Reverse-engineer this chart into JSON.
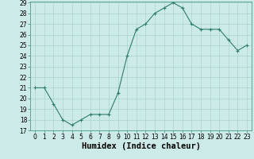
{
  "x": [
    0,
    1,
    2,
    3,
    4,
    5,
    6,
    7,
    8,
    9,
    10,
    11,
    12,
    13,
    14,
    15,
    16,
    17,
    18,
    19,
    20,
    21,
    22,
    23
  ],
  "y": [
    21,
    21,
    19.5,
    18,
    17.5,
    18,
    18.5,
    18.5,
    18.5,
    20.5,
    24,
    26.5,
    27,
    28,
    28.5,
    29,
    28.5,
    27,
    26.5,
    26.5,
    26.5,
    25.5,
    24.5,
    25
  ],
  "line_color": "#2e7d6e",
  "marker_color": "#2e7d6e",
  "bg_color": "#cceae8",
  "grid_color": "#aad4d0",
  "xlabel": "Humidex (Indice chaleur)",
  "ylim": [
    17,
    29
  ],
  "xlim": [
    -0.5,
    23.5
  ],
  "yticks": [
    17,
    18,
    19,
    20,
    21,
    22,
    23,
    24,
    25,
    26,
    27,
    28,
    29
  ],
  "xticks": [
    0,
    1,
    2,
    3,
    4,
    5,
    6,
    7,
    8,
    9,
    10,
    11,
    12,
    13,
    14,
    15,
    16,
    17,
    18,
    19,
    20,
    21,
    22,
    23
  ],
  "tick_fontsize": 5.5,
  "label_fontsize": 7.5
}
